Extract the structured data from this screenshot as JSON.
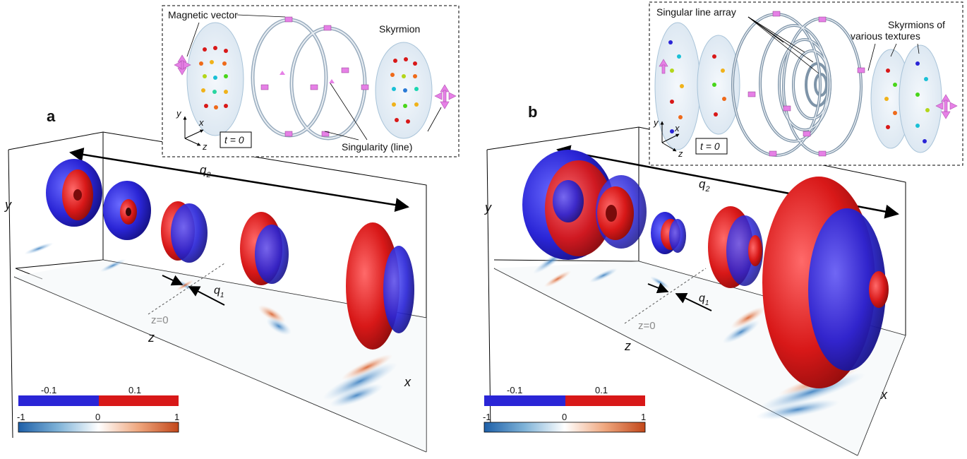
{
  "panels": [
    {
      "label": "a",
      "inset": {
        "magnetic_vector": "Magnetic vector",
        "skyrmion": "Skyrmion",
        "singularity": "Singularity (line)",
        "time": "t = 0",
        "axes": {
          "x": "x",
          "y": "y",
          "z": "z"
        }
      },
      "axes": {
        "x": "x",
        "y": "y",
        "z": "z",
        "z0": "z=0",
        "q1": "q",
        "q1_sub": "1",
        "q2": "q",
        "q2_sub": "2"
      },
      "colorbars": {
        "iso": {
          "labels": [
            "-0.1",
            "0.1"
          ],
          "colors": [
            "#2a25d6",
            "#d81818"
          ]
        },
        "field": {
          "ticks": [
            "-1",
            "0",
            "1"
          ],
          "colors": [
            "#1d5fa8",
            "#ffffff",
            "#c2471a"
          ]
        }
      }
    },
    {
      "label": "b",
      "inset": {
        "singular_line_array": "Singular line array",
        "skyrmions_line1": "Skyrmions of",
        "skyrmions_line2": "various textures",
        "time": "t = 0",
        "axes": {
          "x": "x",
          "y": "y",
          "z": "z"
        }
      },
      "axes": {
        "x": "x",
        "y": "y",
        "z": "z",
        "z0": "z=0",
        "q1": "q",
        "q1_sub": "1",
        "q2": "q",
        "q2_sub": "2"
      },
      "colorbars": {
        "iso": {
          "labels": [
            "-0.1",
            "0.1"
          ],
          "colors": [
            "#2a25d6",
            "#d81818"
          ]
        },
        "field": {
          "ticks": [
            "-1",
            "0",
            "1"
          ],
          "colors": [
            "#1d5fa8",
            "#ffffff",
            "#c2471a"
          ]
        }
      }
    }
  ]
}
